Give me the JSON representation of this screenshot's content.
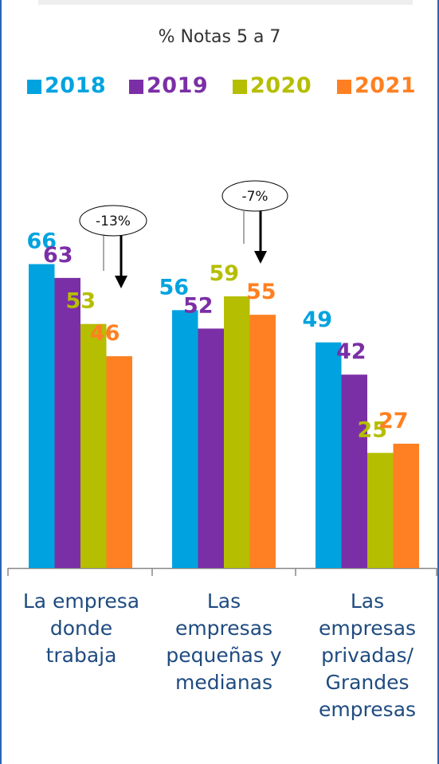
{
  "subtitle": "% Notas 5 a 7",
  "colors": {
    "2018": "#00a3e0",
    "2019": "#7b2fa6",
    "2020": "#b5be00",
    "2021": "#ff8022",
    "axis": "#888888",
    "frame": "#2a64b8",
    "category_text": "#1f4b80"
  },
  "chart_data": {
    "type": "bar",
    "title": "% Notas 5 a 7",
    "categories": [
      "La empresa donde trabaja",
      "Las empresas pequeñas y medianas",
      "Las empresas privadas/ Grandes empresas"
    ],
    "category_lines": [
      "La empresa\ndonde\ntrabaja",
      "Las\nempresas\npequeñas y\nmedianas",
      "Las\nempresas\nprivadas/\nGrandes\nempresas"
    ],
    "series": [
      {
        "name": "2018",
        "values": [
          66,
          56,
          49
        ]
      },
      {
        "name": "2019",
        "values": [
          63,
          52,
          42
        ]
      },
      {
        "name": "2020",
        "values": [
          53,
          59,
          25
        ]
      },
      {
        "name": "2021",
        "values": [
          46,
          55,
          27
        ]
      }
    ],
    "ylim": [
      0,
      100
    ],
    "legend_position": "top",
    "grid": false,
    "annotations": [
      {
        "text": "-13%",
        "category_index": 0
      },
      {
        "text": "-7%",
        "category_index": 1
      }
    ]
  }
}
